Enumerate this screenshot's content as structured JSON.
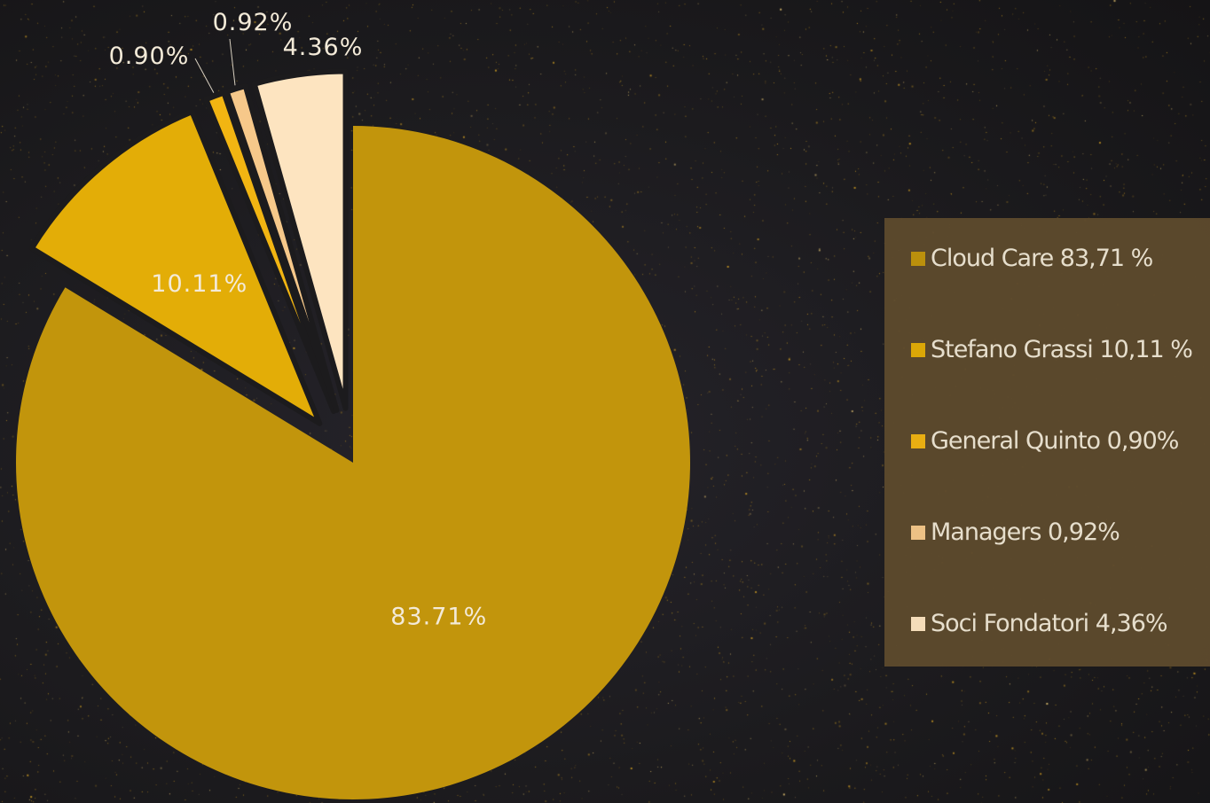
{
  "chart_data": {
    "type": "pie",
    "title": "",
    "slices": [
      {
        "label": "Cloud Care",
        "value": 83.71,
        "display": "83.71%",
        "color": "#c2950c",
        "exploded": false
      },
      {
        "label": "Stefano Grassi",
        "value": 10.11,
        "display": "10.11%",
        "color": "#e3ad07",
        "exploded": true
      },
      {
        "label": "General Quinto",
        "value": 0.9,
        "display": "0.90%",
        "color": "#f2b512",
        "exploded": true
      },
      {
        "label": "Managers",
        "value": 0.92,
        "display": "0.92%",
        "color": "#f6c88a",
        "exploded": true
      },
      {
        "label": "Soci Fondatori",
        "value": 4.36,
        "display": "4.36%",
        "color": "#fde4c0",
        "exploded": true
      }
    ],
    "legend": {
      "placement": "right",
      "entries": [
        {
          "text": "Cloud Care 83,71 %",
          "color": "#c2950c"
        },
        {
          "text": "Stefano Grassi 10,11 %",
          "color": "#e3ad07"
        },
        {
          "text": "General Quinto 0,90%",
          "color": "#f2b512"
        },
        {
          "text": "Managers 0,92%",
          "color": "#f6c88a"
        },
        {
          "text": "Soci Fondatori 4,36%",
          "color": "#fde4c0"
        }
      ]
    }
  },
  "colors": {
    "background": "#1c1b1d",
    "legend_background": "#5d4a2d",
    "label_text": "#f3ead8",
    "sparkle": "#d9a424"
  }
}
